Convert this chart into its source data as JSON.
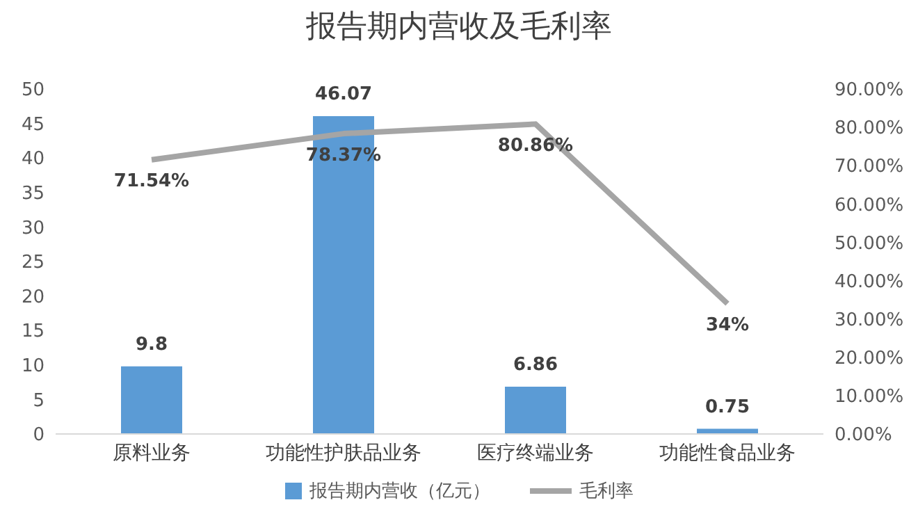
{
  "chart_data": {
    "type": "bar",
    "title": "报告期内营收及毛利率",
    "categories": [
      "原料业务",
      "功能性护肤品业务",
      "医疗终端业务",
      "功能性食品业务"
    ],
    "series": [
      {
        "name": "报告期内营收（亿元）",
        "color": "#5b9bd5",
        "values": [
          9.8,
          46.07,
          6.86,
          0.75
        ],
        "value_labels": [
          "9.8",
          "46.07",
          "6.86",
          "0.75"
        ]
      },
      {
        "name": "毛利率",
        "type": "line",
        "axis": "y2",
        "color": "#a5a5a5",
        "values": [
          71.54,
          78.37,
          80.86,
          34
        ],
        "value_labels": [
          "71.54%",
          "78.37%",
          "80.86%",
          "34%"
        ]
      }
    ],
    "ylim": [
      0,
      50
    ],
    "yticks": [
      0,
      5,
      10,
      15,
      20,
      25,
      30,
      35,
      40,
      45,
      50
    ],
    "y2lim": [
      0,
      90
    ],
    "y2ticks": [
      {
        "value": 0,
        "label": "0.00%"
      },
      {
        "value": 10,
        "label": "10.00%"
      },
      {
        "value": 20,
        "label": "20.00%"
      },
      {
        "value": 30,
        "label": "30.00%"
      },
      {
        "value": 40,
        "label": "40.00%"
      },
      {
        "value": 50,
        "label": "50.00%"
      },
      {
        "value": 60,
        "label": "60.00%"
      },
      {
        "value": 70,
        "label": "70.00%"
      },
      {
        "value": 80,
        "label": "80.00%"
      },
      {
        "value": 90,
        "label": "90.00%"
      }
    ],
    "legend": "bottom",
    "marker": "none",
    "grid": false
  }
}
